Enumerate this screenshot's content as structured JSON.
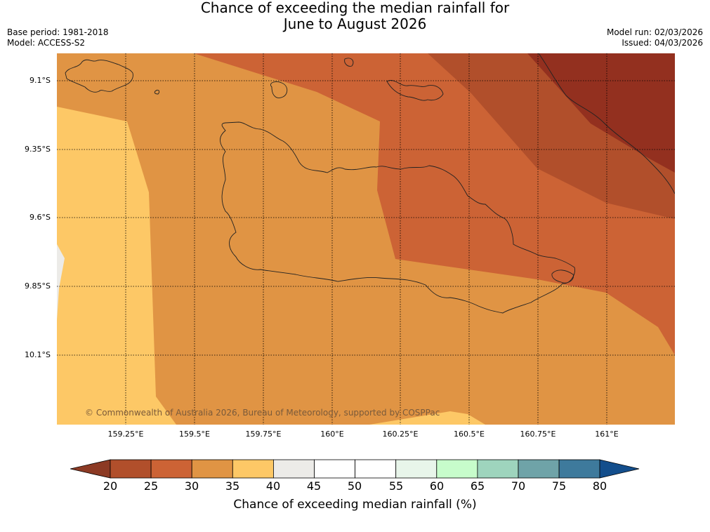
{
  "title": {
    "line1": "Chance of exceeding the median rainfall for",
    "line2": "June to August 2026"
  },
  "meta": {
    "base_period": "Base period: 1981-2018",
    "model": "Model: ACCESS-S2",
    "model_run": "Model run: 02/03/2026",
    "issued": "Issued: 04/03/2026"
  },
  "map": {
    "lat_labels": [
      "9.1°S",
      "9.35°S",
      "9.6°S",
      "9.85°S",
      "10.1°S"
    ],
    "lon_labels": [
      "159.25°E",
      "159.5°E",
      "159.75°E",
      "160°E",
      "160.25°E",
      "160.5°E",
      "160.75°E",
      "161°E"
    ],
    "copyright": "© Commonwealth of Australia 2026, Bureau of Meteorology, supported by COSPPac"
  },
  "colorbar": {
    "ticks": [
      "20",
      "25",
      "30",
      "35",
      "40",
      "45",
      "50",
      "55",
      "60",
      "65",
      "70",
      "75",
      "80"
    ],
    "label": "Chance of exceeding median rainfall (%)",
    "under_color": "#8c3a24",
    "over_color": "#134e8c",
    "bin_colors": [
      "#b14f2b",
      "#cc6335",
      "#e09444",
      "#fdc866",
      "#ecebe8",
      "#ffffff",
      "#ffffff",
      "#e8f5ea",
      "#c7fccb",
      "#9ed4bd",
      "#6fa3a8",
      "#3e7a9c"
    ]
  },
  "palette": {
    "c30": "#e09444",
    "c35": "#fdc866",
    "c40": "#ecebe8",
    "c25": "#cc6335",
    "c20": "#b14f2b",
    "c15": "#93301f"
  }
}
